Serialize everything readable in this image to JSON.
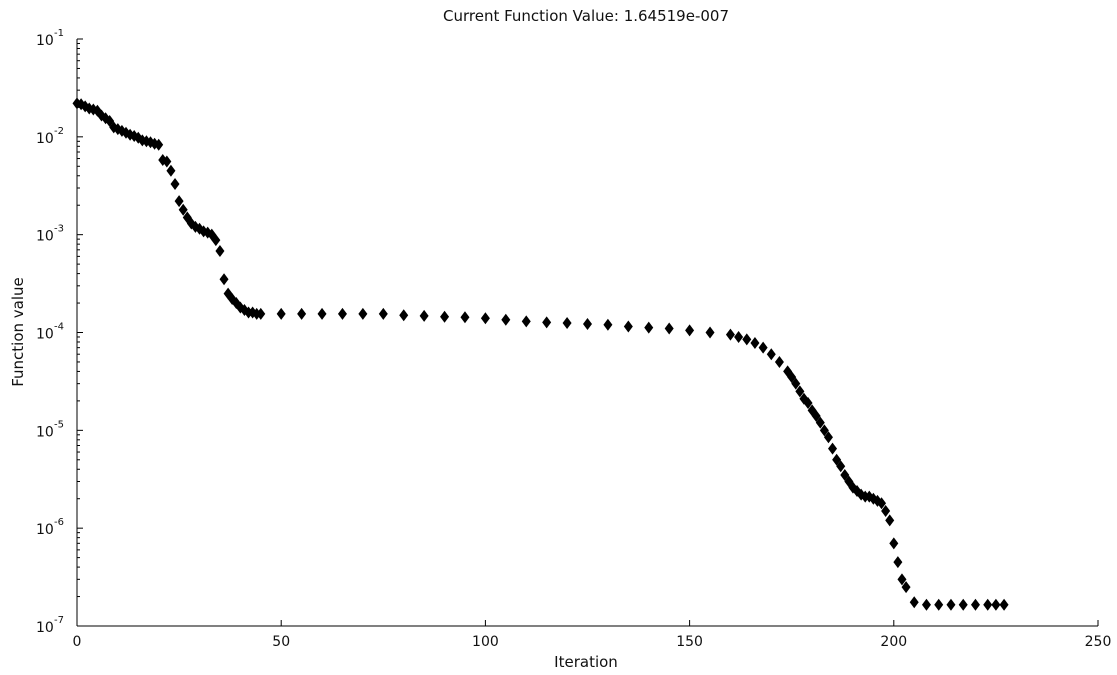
{
  "chart_data": {
    "type": "scatter",
    "title": "Current Function Value: 1.64519e-007",
    "xlabel": "Iteration",
    "ylabel": "Function value",
    "xlim": [
      0,
      250
    ],
    "ylim": [
      1e-07,
      0.1
    ],
    "yscale": "log",
    "grid": false,
    "marker": "diamond",
    "marker_color": "#000000",
    "x_ticks": [
      {
        "value": 0,
        "label": "0"
      },
      {
        "value": 50,
        "label": "50"
      },
      {
        "value": 100,
        "label": "100"
      },
      {
        "value": 150,
        "label": "150"
      },
      {
        "value": 200,
        "label": "200"
      },
      {
        "value": 250,
        "label": "250"
      }
    ],
    "y_ticks": [
      {
        "value": 0.1,
        "base": "10",
        "exp": "-1"
      },
      {
        "value": 0.01,
        "base": "10",
        "exp": "-2"
      },
      {
        "value": 0.001,
        "base": "10",
        "exp": "-3"
      },
      {
        "value": 0.0001,
        "base": "10",
        "exp": "-4"
      },
      {
        "value": 1e-05,
        "base": "10",
        "exp": "-5"
      },
      {
        "value": 1e-06,
        "base": "10",
        "exp": "-6"
      },
      {
        "value": 1e-07,
        "base": "10",
        "exp": "-7"
      }
    ],
    "series": [
      {
        "x": [
          0,
          1,
          2,
          3,
          4,
          5,
          6,
          7,
          8,
          9,
          10,
          11,
          12,
          13,
          14,
          15,
          16,
          17,
          18,
          19,
          20,
          21,
          22,
          23,
          24,
          25,
          26,
          27,
          28,
          29,
          30,
          31,
          32,
          33,
          34,
          35,
          36,
          37,
          38,
          39,
          40,
          41,
          42,
          43,
          44,
          45,
          50,
          55,
          60,
          65,
          70,
          75,
          80,
          85,
          90,
          95,
          100,
          105,
          110,
          115,
          120,
          125,
          130,
          135,
          140,
          145,
          150,
          155,
          160,
          162,
          164,
          166,
          168,
          170,
          172,
          174,
          175,
          176,
          177,
          178,
          179,
          180,
          181,
          182,
          183,
          184,
          185,
          186,
          187,
          188,
          189,
          190,
          191,
          192,
          193,
          194,
          195,
          196,
          197,
          198,
          199,
          200,
          201,
          202,
          203,
          205,
          208,
          211,
          214,
          217,
          220,
          223,
          225,
          227
        ],
        "y": [
          0.022,
          0.0215,
          0.0205,
          0.0195,
          0.019,
          0.0185,
          0.0165,
          0.0155,
          0.0145,
          0.0125,
          0.012,
          0.0115,
          0.011,
          0.0105,
          0.0102,
          0.0098,
          0.0092,
          0.009,
          0.0088,
          0.0085,
          0.0083,
          0.0058,
          0.0056,
          0.0045,
          0.0033,
          0.0022,
          0.0018,
          0.0015,
          0.0013,
          0.0012,
          0.00115,
          0.00108,
          0.00105,
          0.001,
          0.00088,
          0.00068,
          0.00035,
          0.00025,
          0.00022,
          0.0002,
          0.00018,
          0.00017,
          0.00016,
          0.00016,
          0.000155,
          0.000155,
          0.000155,
          0.000155,
          0.000155,
          0.000155,
          0.000155,
          0.000155,
          0.00015,
          0.000148,
          0.000145,
          0.000143,
          0.00014,
          0.000135,
          0.00013,
          0.000127,
          0.000125,
          0.000122,
          0.00012,
          0.000115,
          0.000112,
          0.00011,
          0.000105,
          0.0001,
          9.5e-05,
          9e-05,
          8.5e-05,
          7.8e-05,
          7e-05,
          6e-05,
          5e-05,
          4e-05,
          3.5e-05,
          3e-05,
          2.5e-05,
          2.1e-05,
          1.9e-05,
          1.6e-05,
          1.4e-05,
          1.2e-05,
          1e-05,
          8.5e-06,
          6.5e-06,
          5e-06,
          4.3e-06,
          3.5e-06,
          3e-06,
          2.6e-06,
          2.4e-06,
          2.2e-06,
          2.1e-06,
          2.1e-06,
          2e-06,
          1.9e-06,
          1.8e-06,
          1.5e-06,
          1.2e-06,
          7e-07,
          4.5e-07,
          3e-07,
          2.5e-07,
          1.75e-07,
          1.65e-07,
          1.65e-07,
          1.65e-07,
          1.65e-07,
          1.65e-07,
          1.65e-07,
          1.65e-07,
          1.65e-07
        ]
      }
    ]
  }
}
